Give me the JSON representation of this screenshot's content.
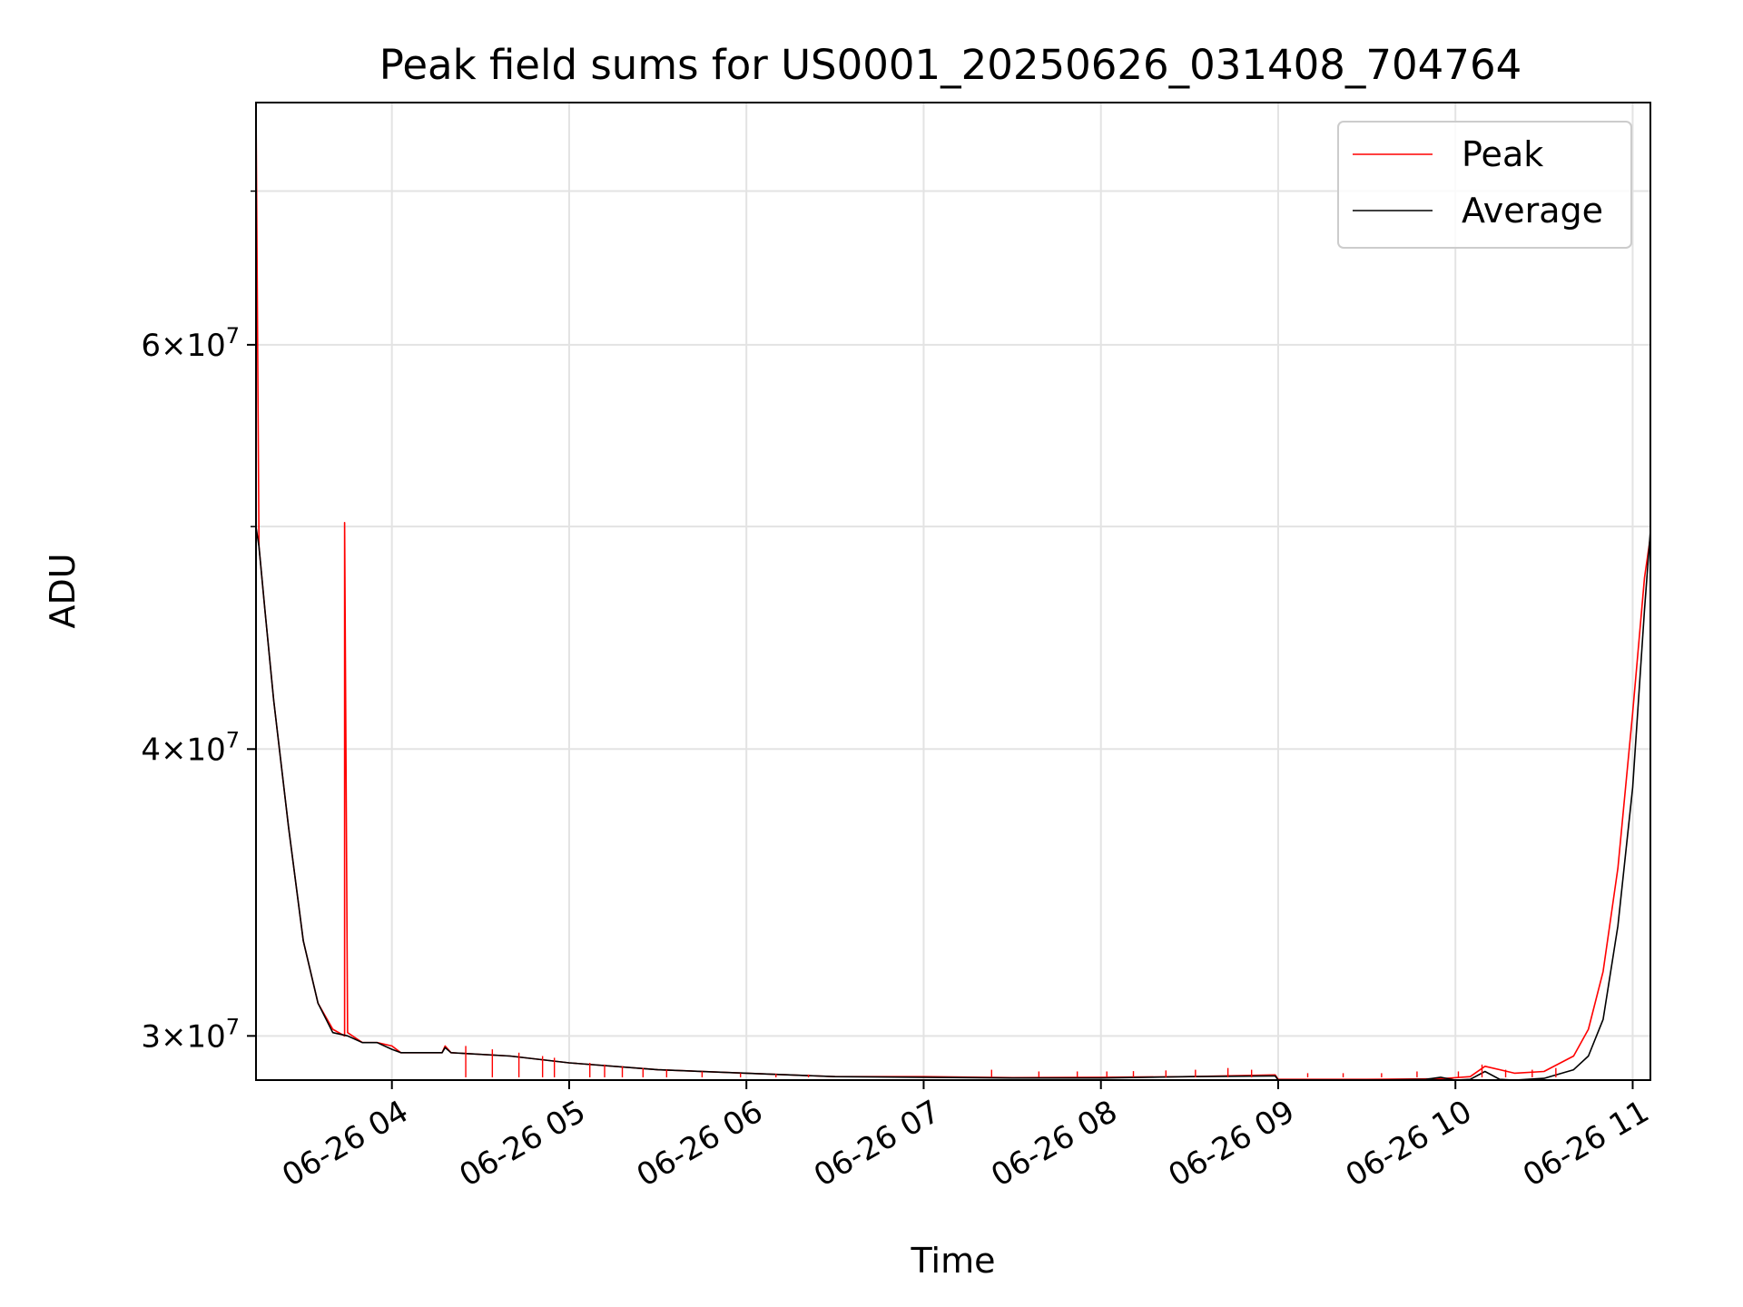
{
  "chart_data": {
    "type": "line",
    "title": "Peak field sums for US0001_20250626_031408_704764",
    "xlabel": "Time",
    "ylabel": "ADU",
    "xscale": "time",
    "yscale": "log",
    "xlim": [
      "2025-06-26 03:14",
      "2025-06-26 11:06"
    ],
    "ylim": [
      28700000,
      76500000
    ],
    "grid": true,
    "legend_position": "top-right",
    "x_ticks": [
      {
        "value": "2025-06-26 04:00",
        "label": "06-26 04"
      },
      {
        "value": "2025-06-26 05:00",
        "label": "06-26 05"
      },
      {
        "value": "2025-06-26 06:00",
        "label": "06-26 06"
      },
      {
        "value": "2025-06-26 07:00",
        "label": "06-26 07"
      },
      {
        "value": "2025-06-26 08:00",
        "label": "06-26 08"
      },
      {
        "value": "2025-06-26 09:00",
        "label": "06-26 09"
      },
      {
        "value": "2025-06-26 10:00",
        "label": "06-26 10"
      },
      {
        "value": "2025-06-26 11:00",
        "label": "06-26 11"
      }
    ],
    "y_ticks_major": [
      {
        "value": 30000000,
        "label_mantissa": "3",
        "label_base": "10",
        "label_exp": "7"
      },
      {
        "value": 40000000,
        "label_mantissa": "4",
        "label_base": "10",
        "label_exp": "7"
      },
      {
        "value": 60000000,
        "label_mantissa": "6",
        "label_base": "10",
        "label_exp": "7"
      }
    ],
    "y_ticks_minor": [
      50000000,
      70000000
    ],
    "series": [
      {
        "name": "Peak",
        "color": "#ff0000",
        "x": [
          "2025-06-26 03:14",
          "2025-06-26 03:15",
          "2025-06-26 03:17",
          "2025-06-26 03:20",
          "2025-06-26 03:25",
          "2025-06-26 03:30",
          "2025-06-26 03:35",
          "2025-06-26 03:40",
          "2025-06-26 03:44",
          "2025-06-26 03:44",
          "2025-06-26 03:45",
          "2025-06-26 03:50",
          "2025-06-26 03:55",
          "2025-06-26 04:00",
          "2025-06-26 04:03",
          "2025-06-26 04:10",
          "2025-06-26 04:17",
          "2025-06-26 04:18",
          "2025-06-26 04:20",
          "2025-06-26 04:40",
          "2025-06-26 05:00",
          "2025-06-26 05:30",
          "2025-06-26 06:00",
          "2025-06-26 06:30",
          "2025-06-26 07:00",
          "2025-06-26 07:30",
          "2025-06-26 08:00",
          "2025-06-26 08:30",
          "2025-06-26 08:59",
          "2025-06-26 09:00",
          "2025-06-26 09:30",
          "2025-06-26 09:55",
          "2025-06-26 10:05",
          "2025-06-26 10:10",
          "2025-06-26 10:20",
          "2025-06-26 10:30",
          "2025-06-26 10:40",
          "2025-06-26 10:45",
          "2025-06-26 10:50",
          "2025-06-26 10:55",
          "2025-06-26 11:00",
          "2025-06-26 11:04",
          "2025-06-26 11:06"
        ],
        "y": [
          76500000,
          49000000,
          46000000,
          42000000,
          37000000,
          33000000,
          31000000,
          30200000,
          30000000,
          50200000,
          30100000,
          29800000,
          29800000,
          29700000,
          29500000,
          29500000,
          29500000,
          29700000,
          29500000,
          29400000,
          29200000,
          29000000,
          28900000,
          28800000,
          28800000,
          28770000,
          28780000,
          28800000,
          28850000,
          28720000,
          28720000,
          28740000,
          28800000,
          29100000,
          28900000,
          28950000,
          29400000,
          30200000,
          32000000,
          35500000,
          41500000,
          47500000,
          49500000
        ]
      },
      {
        "name": "Average",
        "color": "#000000",
        "x": [
          "2025-06-26 03:14",
          "2025-06-26 03:15",
          "2025-06-26 03:17",
          "2025-06-26 03:20",
          "2025-06-26 03:25",
          "2025-06-26 03:30",
          "2025-06-26 03:35",
          "2025-06-26 03:40",
          "2025-06-26 03:45",
          "2025-06-26 03:50",
          "2025-06-26 03:55",
          "2025-06-26 04:00",
          "2025-06-26 04:03",
          "2025-06-26 04:10",
          "2025-06-26 04:17",
          "2025-06-26 04:18",
          "2025-06-26 04:20",
          "2025-06-26 04:40",
          "2025-06-26 05:00",
          "2025-06-26 05:30",
          "2025-06-26 06:00",
          "2025-06-26 06:30",
          "2025-06-26 07:00",
          "2025-06-26 07:30",
          "2025-06-26 08:00",
          "2025-06-26 08:30",
          "2025-06-26 08:59",
          "2025-06-26 09:00",
          "2025-06-26 09:30",
          "2025-06-26 09:50",
          "2025-06-26 09:55",
          "2025-06-26 10:00",
          "2025-06-26 10:05",
          "2025-06-26 10:10",
          "2025-06-26 10:15",
          "2025-06-26 10:20",
          "2025-06-26 10:30",
          "2025-06-26 10:40",
          "2025-06-26 10:45",
          "2025-06-26 10:50",
          "2025-06-26 10:55",
          "2025-06-26 11:00",
          "2025-06-26 11:04",
          "2025-06-26 11:06"
        ],
        "y": [
          50000000,
          49000000,
          46000000,
          42000000,
          37000000,
          33000000,
          31000000,
          30100000,
          30000000,
          29800000,
          29800000,
          29600000,
          29500000,
          29500000,
          29500000,
          29650000,
          29500000,
          29400000,
          29200000,
          29000000,
          28900000,
          28800000,
          28780000,
          28760000,
          28760000,
          28800000,
          28820000,
          28700000,
          28700000,
          28720000,
          28780000,
          28700000,
          28720000,
          28950000,
          28720000,
          28700000,
          28750000,
          29000000,
          29400000,
          30500000,
          33500000,
          38500000,
          46000000,
          49800000
        ]
      }
    ],
    "spikes": [
      {
        "series": "Peak",
        "x": [
          "2025-06-26 04:25",
          "2025-06-26 04:34",
          "2025-06-26 04:43",
          "2025-06-26 04:51",
          "2025-06-26 04:55",
          "2025-06-26 05:07",
          "2025-06-26 05:12",
          "2025-06-26 05:18",
          "2025-06-26 05:25",
          "2025-06-26 05:33",
          "2025-06-26 05:45",
          "2025-06-26 05:58",
          "2025-06-26 06:10",
          "2025-06-26 06:21",
          "2025-06-26 07:23",
          "2025-06-26 07:39",
          "2025-06-26 07:52",
          "2025-06-26 08:02",
          "2025-06-26 08:11",
          "2025-06-26 08:22",
          "2025-06-26 08:32",
          "2025-06-26 08:43",
          "2025-06-26 08:51",
          "2025-06-26 09:10",
          "2025-06-26 09:22",
          "2025-06-26 09:35",
          "2025-06-26 09:47",
          "2025-06-26 10:01",
          "2025-06-26 10:09",
          "2025-06-26 10:17",
          "2025-06-26 10:26",
          "2025-06-26 10:34"
        ],
        "y": [
          29700000,
          29600000,
          29500000,
          29400000,
          29350000,
          29200000,
          29150000,
          29100000,
          29050000,
          29000000,
          28950000,
          28900000,
          28880000,
          28860000,
          29000000,
          28950000,
          28950000,
          28950000,
          28960000,
          28980000,
          29000000,
          29050000,
          29000000,
          28900000,
          28900000,
          28900000,
          28950000,
          28950000,
          29150000,
          29000000,
          29000000,
          29050000
        ]
      }
    ]
  }
}
